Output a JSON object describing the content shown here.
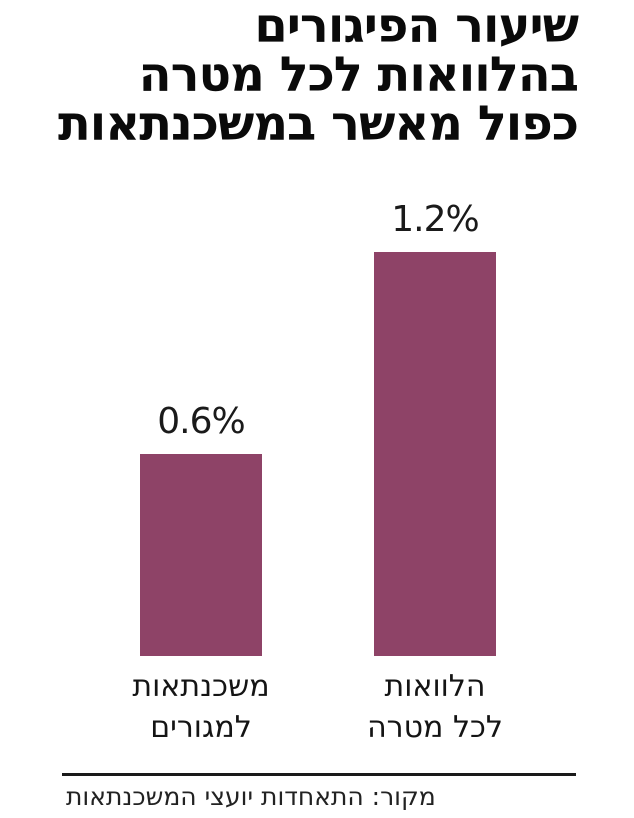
{
  "colors": {
    "bar": "#8E4367",
    "title_text": "#0a0a0a",
    "body_text": "#1a1a1a",
    "divider": "#1a1a1a"
  },
  "title": {
    "lines": [
      "שיעור הפיגורים",
      "בהלוואות לכל מטרה",
      "כפול מאשר במשכנתאות"
    ]
  },
  "chart_data": {
    "type": "bar",
    "title": "שיעור הפיגורים בהלוואות לכל מטרה כפול מאשר במשכנתאות",
    "categories": [
      "הלוואות לכל מטרה",
      "משכנתאות למגורים"
    ],
    "values": [
      1.2,
      0.6
    ],
    "value_labels": [
      "1.2%",
      "0.6%"
    ],
    "unit": "%",
    "bar_color": "#8E4367",
    "ylim": [
      0,
      1.4
    ],
    "grid": false,
    "legend": false,
    "rtl": true,
    "xlabel": "",
    "ylabel": "",
    "source": "מקור: התאחדות יועצי המשכנתאות"
  },
  "bars": [
    {
      "value": 1.2,
      "value_label": "1.2%",
      "category_lines": [
        "הלוואות",
        "לכל מטרה"
      ]
    },
    {
      "value": 0.6,
      "value_label": "0.6%",
      "category_lines": [
        "משכנתאות",
        "למגורים"
      ]
    }
  ],
  "footer": {
    "source_label": "מקור: התאחדות יועצי המשכנתאות"
  }
}
